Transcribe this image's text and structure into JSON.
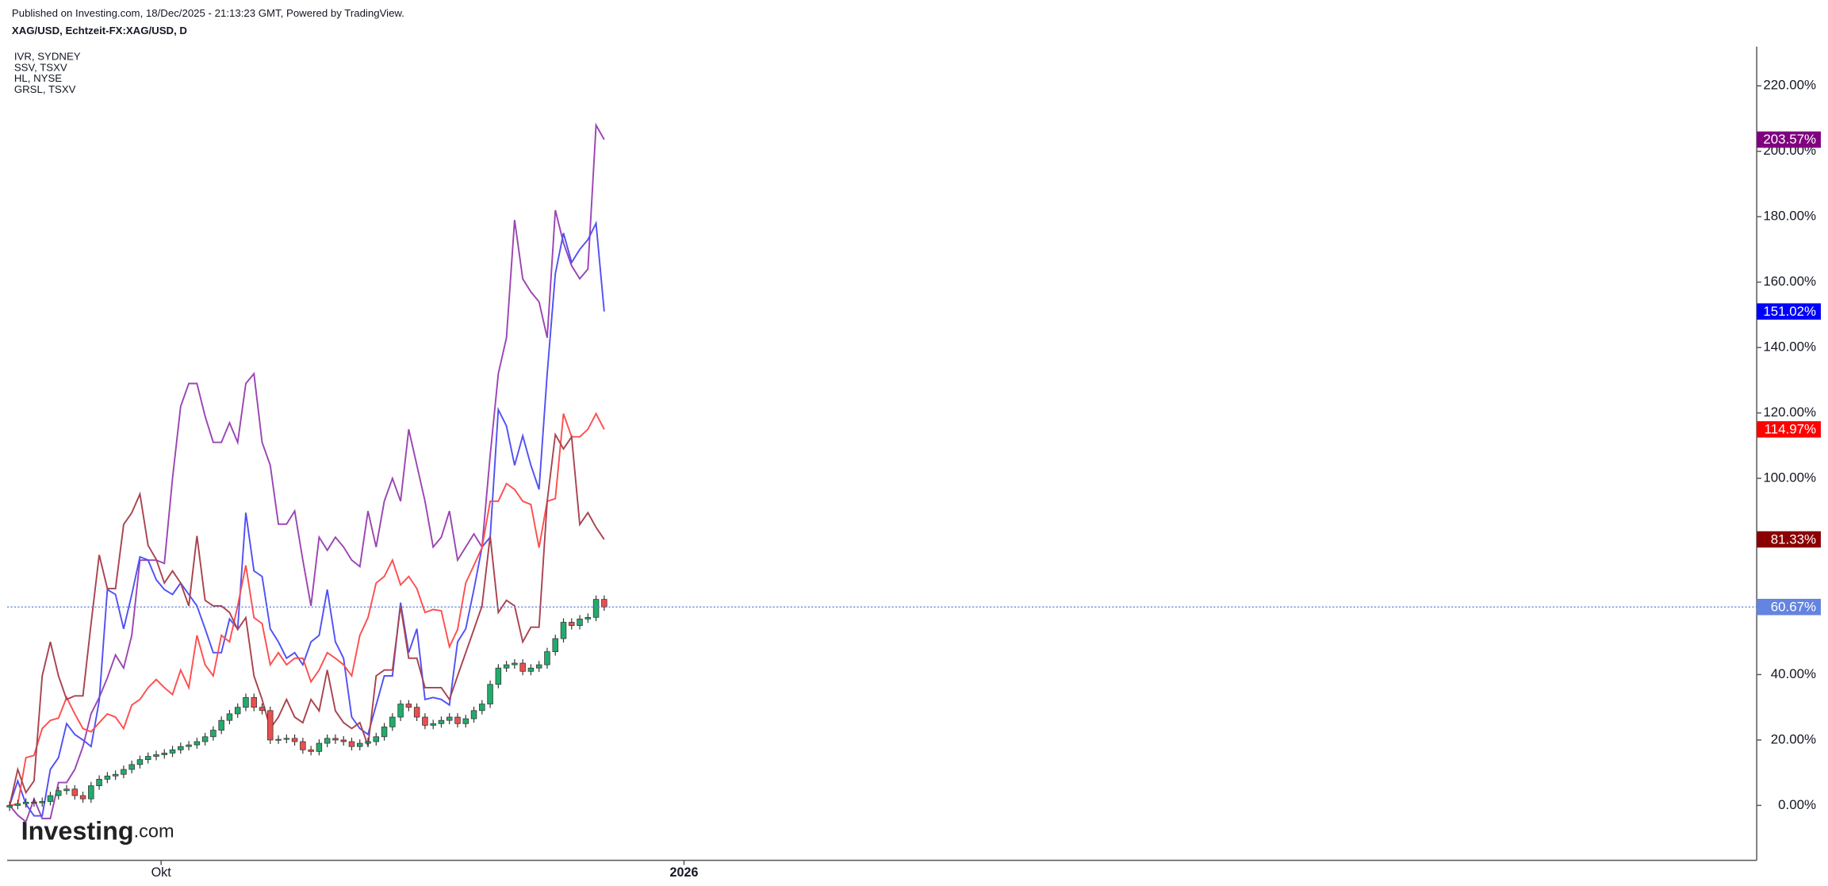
{
  "chart_data": {
    "type": "line",
    "header": "Published on Investing.com, 18/Dec/2025 - 21:13:23 GMT, Powered by TradingView.",
    "title": "XAG/USD, Echtzeit-FX:XAG/USD, D",
    "watermark": {
      "brand": "Investing",
      "suffix": ".com"
    },
    "x": [
      0,
      1,
      2,
      3,
      4,
      5,
      6,
      7,
      8,
      9,
      10,
      11,
      12,
      13,
      14,
      15,
      16,
      17,
      18,
      19,
      20,
      21,
      22,
      23,
      24,
      25,
      26,
      27,
      28,
      29,
      30,
      31,
      32,
      33,
      34,
      35,
      36,
      37,
      38,
      39,
      40,
      41,
      42,
      43,
      44,
      45,
      46,
      47,
      48,
      49,
      50,
      51,
      52,
      53,
      54,
      55,
      56,
      57,
      58,
      59,
      60,
      61,
      62,
      63,
      64,
      65,
      66,
      67,
      68,
      69,
      70,
      71,
      72,
      73
    ],
    "xlim": [
      -0.3,
      214.5
    ],
    "xticks": [
      {
        "value": 18.6,
        "label": "Okt"
      },
      {
        "value": 82.8,
        "label": "2026"
      }
    ],
    "ylim": [
      -16.8,
      232
    ],
    "yticks": [
      {
        "value": 0,
        "label": "0.00%"
      },
      {
        "value": 20,
        "label": "20.00%"
      },
      {
        "value": 40,
        "label": "40.00%"
      },
      {
        "value": 60,
        "label": "60.00%"
      },
      {
        "value": 80,
        "label": "80.00%"
      },
      {
        "value": 100,
        "label": "100.00%"
      },
      {
        "value": 120,
        "label": "120.00%"
      },
      {
        "value": 140,
        "label": "140.00%"
      },
      {
        "value": 160,
        "label": "160.00%"
      },
      {
        "value": 180,
        "label": "180.00%"
      },
      {
        "value": 200,
        "label": "200.00%"
      },
      {
        "value": 220,
        "label": "220.00%"
      }
    ],
    "series": [
      {
        "name": "IVR, SYDNEY",
        "color": "#9b44b3",
        "label_color": "#800080",
        "last_value_label": "203.57%",
        "values": [
          0,
          -3,
          -5,
          2,
          -4,
          -4,
          7,
          7,
          11,
          18,
          28,
          33,
          39,
          46,
          42,
          52,
          75,
          75,
          75,
          74,
          100,
          122,
          129,
          129,
          119,
          111,
          111,
          117,
          111,
          129,
          132,
          111,
          104,
          86,
          86,
          90,
          75,
          61,
          82,
          78,
          82,
          79,
          75,
          73,
          90,
          79,
          93,
          100,
          93,
          115,
          104,
          93,
          79,
          82,
          90,
          75,
          79,
          83,
          79,
          107,
          132,
          143,
          179,
          161,
          157,
          154,
          143,
          182,
          172,
          165,
          161,
          164,
          208,
          203.57
        ]
      },
      {
        "name": "SSV, TSXV",
        "color": "#5050f5",
        "label_color": "#0000ff",
        "last_value_label": "151.02%",
        "values": [
          0,
          7.5,
          0.4,
          -3.2,
          -3.2,
          11,
          14.6,
          25,
          21.7,
          20,
          18,
          32,
          66,
          64.5,
          54,
          64.5,
          76,
          75,
          69,
          66,
          64.5,
          68,
          64.5,
          61,
          54,
          46.7,
          46.7,
          57,
          54,
          89.5,
          71.7,
          70,
          54,
          50,
          45,
          46.7,
          43,
          50,
          52,
          66,
          50,
          45,
          27,
          23.5,
          21.7,
          30.7,
          39.6,
          39.6,
          62,
          46.7,
          54,
          32.4,
          33,
          32.4,
          30.7,
          50,
          54,
          66,
          79,
          82,
          121,
          116,
          104,
          113,
          104,
          96.6,
          132,
          162.6,
          175,
          166,
          170,
          173,
          178,
          151.02
        ]
      },
      {
        "name": "HL, NYSE",
        "color": "#ff4d4d",
        "label_color": "#ff0000",
        "last_value_label": "114.97%",
        "values": [
          0,
          0.4,
          14.6,
          15.3,
          23.5,
          26,
          26.7,
          33,
          28,
          23.5,
          22.5,
          25.3,
          28,
          27,
          23.5,
          30.7,
          32.4,
          36,
          38.5,
          36,
          33.9,
          41.4,
          36,
          52,
          43,
          39.6,
          52,
          50,
          61,
          73.4,
          57.4,
          55.6,
          43,
          46.7,
          43,
          45,
          45,
          37.8,
          41.4,
          46.7,
          45,
          43,
          39.6,
          52,
          57.4,
          68,
          70,
          75,
          67.4,
          70,
          66.3,
          59,
          59.9,
          59.5,
          48.5,
          53.8,
          68,
          73.4,
          78.8,
          93,
          93,
          98.4,
          96.6,
          93,
          92,
          78.8,
          93,
          93.8,
          119.8,
          112.7,
          112.7,
          115,
          119.8,
          114.97
        ]
      },
      {
        "name": "GRSL, TSXV",
        "color": "#a8434f",
        "label_color": "#8b0000",
        "last_value_label": "81.33%",
        "values": [
          0,
          11,
          3.9,
          7.5,
          39.6,
          50,
          39.6,
          32.4,
          33.5,
          33.5,
          55.6,
          76.6,
          66.3,
          66.3,
          85.9,
          89.5,
          95.2,
          79.5,
          75.2,
          68,
          71.7,
          68,
          61,
          82.4,
          62.7,
          61,
          61,
          59,
          53.8,
          57.4,
          39.6,
          32.4,
          23.5,
          27,
          32.4,
          27,
          25.3,
          32.4,
          28.9,
          41.4,
          28.9,
          25.3,
          23.5,
          25.3,
          18.2,
          39.6,
          41.4,
          41.4,
          61,
          45,
          45,
          36,
          36,
          36,
          32.4,
          39.6,
          46.7,
          53.8,
          61,
          82.4,
          59,
          62.7,
          61,
          50,
          54.5,
          54.5,
          93,
          113.4,
          109,
          112.7,
          85.9,
          89.5,
          85,
          81.33
        ]
      }
    ],
    "candles": {
      "up_color": "#22ab6b",
      "down_color": "#e8504f",
      "line_color": "#5b7fd6",
      "label_color": "#6384e0",
      "last_value_label": "60.67%",
      "open": [
        -0.5,
        0,
        0.5,
        1,
        0.8,
        1.2,
        3,
        4.5,
        5,
        3,
        2,
        6,
        8,
        9,
        9.5,
        11,
        12.5,
        14,
        15,
        15.5,
        16,
        17,
        18,
        18.5,
        19.5,
        21,
        23,
        26,
        28,
        30,
        33,
        30,
        29,
        20,
        20.2,
        20.5,
        19.5,
        17,
        16.5,
        19,
        20.5,
        20,
        19.5,
        18,
        19,
        19.5,
        21,
        24,
        27,
        31,
        30,
        27,
        24.5,
        25,
        26,
        27,
        25,
        26.5,
        29,
        31,
        37,
        42,
        43,
        43.5,
        41,
        42,
        43,
        47,
        51,
        56,
        55,
        57,
        57.5,
        63
      ],
      "high": [
        1.2,
        1.7,
        2.2,
        2.2,
        2.4,
        4.2,
        5.7,
        6.2,
        6.2,
        4.2,
        7.2,
        9.2,
        10.2,
        10.7,
        12.2,
        13.7,
        15.2,
        16.2,
        16.7,
        17.2,
        18.2,
        19.2,
        19.7,
        20.7,
        22.2,
        24.2,
        27.2,
        29.2,
        31.2,
        34.2,
        34.2,
        31.2,
        30.2,
        21.4,
        21.7,
        21.7,
        20.7,
        18.2,
        20.2,
        21.7,
        21.7,
        21.2,
        20.7,
        20.2,
        20.7,
        22.2,
        25.2,
        28.2,
        32.2,
        32.2,
        31.2,
        28.2,
        26.2,
        27.2,
        28.2,
        28.2,
        27.7,
        30.2,
        32.2,
        38.2,
        43.2,
        44.2,
        44.7,
        44.7,
        43.2,
        44.2,
        48.2,
        52.2,
        57.2,
        57.2,
        58.2,
        58.7,
        64.2,
        64.2
      ],
      "low": [
        -1.7,
        -1.2,
        -0.7,
        -0.4,
        -0.4,
        0,
        1.8,
        3.3,
        1.8,
        0.8,
        0.8,
        4.8,
        6.8,
        7.8,
        8.3,
        9.8,
        11.3,
        12.8,
        13.8,
        14.3,
        14.8,
        15.8,
        16.8,
        17.3,
        18.3,
        19.8,
        21.8,
        24.8,
        26.8,
        28.8,
        28.8,
        27.8,
        18.8,
        18.8,
        19,
        18.3,
        15.8,
        15.3,
        15.3,
        17.8,
        18.8,
        18.3,
        16.8,
        16.8,
        17.8,
        18.3,
        19.8,
        22.8,
        25.8,
        28.8,
        25.8,
        23.3,
        23.3,
        23.8,
        24.8,
        23.8,
        23.8,
        25.3,
        27.8,
        29.8,
        35.8,
        40.8,
        41.8,
        39.8,
        39.8,
        40.8,
        41.8,
        45.8,
        49.8,
        53.8,
        53.8,
        55.8,
        56.3,
        59.5
      ],
      "close": [
        0,
        0.5,
        1,
        0.8,
        1.2,
        3,
        4.5,
        5,
        3,
        2,
        6,
        8,
        9,
        9.5,
        11,
        12.5,
        14,
        15,
        15.5,
        16,
        17,
        18,
        18.5,
        19.5,
        21,
        23,
        26,
        28,
        30,
        33,
        30,
        29,
        20,
        20.2,
        20.5,
        19.5,
        17,
        16.5,
        19,
        20.5,
        20,
        19.5,
        18,
        19,
        19.5,
        21,
        24,
        27,
        31,
        30,
        27,
        24.5,
        25,
        26,
        27,
        25,
        26.5,
        29,
        31,
        37,
        42,
        43,
        43.5,
        41,
        42,
        43,
        47,
        51,
        56,
        55,
        57,
        57.5,
        63,
        60.67
      ]
    }
  }
}
